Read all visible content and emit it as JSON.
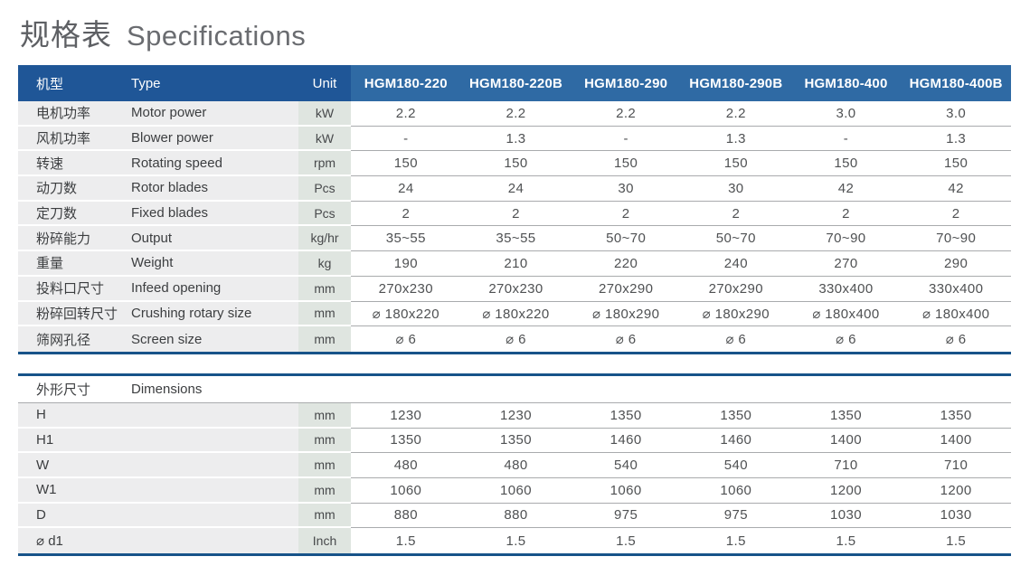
{
  "title": {
    "zh": "规格表",
    "en": "Specifications"
  },
  "colors": {
    "header-blue": "#1F5697",
    "header-blue-light": "#2F6AA4",
    "border-blue": "#175389",
    "label-bg": "#EDEDEE",
    "unit-bg": "#DFE5E0",
    "line-gray": "#A9ABAD",
    "label-color": "#3C3E40",
    "value-color": "#4F5153",
    "unit-color": "#47494B",
    "title-zh": "#5E6064",
    "title-en": "#6A6C70"
  },
  "table1": {
    "header": {
      "zh": "机型",
      "type": "Type",
      "unit": "Unit",
      "models": [
        "HGM180-220",
        "HGM180-220B",
        "HGM180-290",
        "HGM180-290B",
        "HGM180-400",
        "HGM180-400B"
      ]
    },
    "rows": [
      {
        "zh": "电机功率",
        "en": "Motor power",
        "unit": "kW",
        "values": [
          "2.2",
          "2.2",
          "2.2",
          "2.2",
          "3.0",
          "3.0"
        ]
      },
      {
        "zh": "风机功率",
        "en": "Blower power",
        "unit": "kW",
        "values": [
          "-",
          "1.3",
          "-",
          "1.3",
          "-",
          "1.3"
        ]
      },
      {
        "zh": "转速",
        "en": "Rotating speed",
        "unit": "rpm",
        "values": [
          "150",
          "150",
          "150",
          "150",
          "150",
          "150"
        ]
      },
      {
        "zh": "动刀数",
        "en": "Rotor blades",
        "unit": "Pcs",
        "values": [
          "24",
          "24",
          "30",
          "30",
          "42",
          "42"
        ]
      },
      {
        "zh": "定刀数",
        "en": "Fixed blades",
        "unit": "Pcs",
        "values": [
          "2",
          "2",
          "2",
          "2",
          "2",
          "2"
        ]
      },
      {
        "zh": "粉碎能力",
        "en": "Output",
        "unit": "kg/hr",
        "values": [
          "35~55",
          "35~55",
          "50~70",
          "50~70",
          "70~90",
          "70~90"
        ]
      },
      {
        "zh": "重量",
        "en": "Weight",
        "unit": "kg",
        "values": [
          "190",
          "210",
          "220",
          "240",
          "270",
          "290"
        ]
      },
      {
        "zh": "投料口尺寸",
        "en": "Infeed opening",
        "unit": "mm",
        "values": [
          "270x230",
          "270x230",
          "270x290",
          "270x290",
          "330x400",
          "330x400"
        ]
      },
      {
        "zh": "粉碎回转尺寸",
        "en": "Crushing rotary size",
        "unit": "mm",
        "values": [
          "⌀ 180x220",
          "⌀ 180x220",
          "⌀ 180x290",
          "⌀ 180x290",
          "⌀ 180x400",
          "⌀ 180x400"
        ]
      },
      {
        "zh": "筛网孔径",
        "en": "Screen size",
        "unit": "mm",
        "values": [
          "⌀ 6",
          "⌀ 6",
          "⌀ 6",
          "⌀ 6",
          "⌀ 6",
          "⌀ 6"
        ]
      }
    ]
  },
  "table2": {
    "header": {
      "zh": "外形尺寸",
      "en": "Dimensions"
    },
    "rows": [
      {
        "zh": "H",
        "en": "",
        "unit": "mm",
        "values": [
          "1230",
          "1230",
          "1350",
          "1350",
          "1350",
          "1350"
        ]
      },
      {
        "zh": "H1",
        "en": "",
        "unit": "mm",
        "values": [
          "1350",
          "1350",
          "1460",
          "1460",
          "1400",
          "1400"
        ]
      },
      {
        "zh": "W",
        "en": "",
        "unit": "mm",
        "values": [
          "480",
          "480",
          "540",
          "540",
          "710",
          "710"
        ]
      },
      {
        "zh": "W1",
        "en": "",
        "unit": "mm",
        "values": [
          "1060",
          "1060",
          "1060",
          "1060",
          "1200",
          "1200"
        ]
      },
      {
        "zh": "D",
        "en": "",
        "unit": "mm",
        "values": [
          "880",
          "880",
          "975",
          "975",
          "1030",
          "1030"
        ]
      },
      {
        "zh": "⌀ d1",
        "en": "",
        "unit": "Inch",
        "values": [
          "1.5",
          "1.5",
          "1.5",
          "1.5",
          "1.5",
          "1.5"
        ]
      }
    ]
  }
}
